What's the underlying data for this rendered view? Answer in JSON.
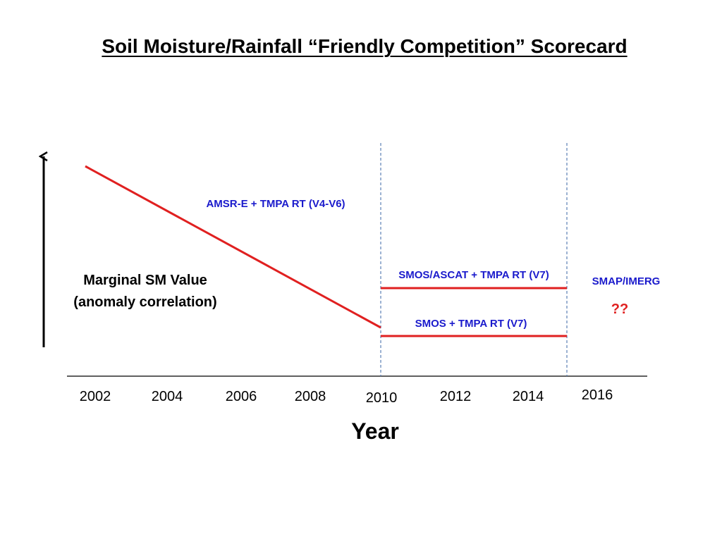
{
  "title": "Soil Moisture/Rainfall “Friendly Competition” Scorecard",
  "chart_data": {
    "type": "line",
    "xlabel": "Year",
    "ylabel_lines": [
      "Marginal SM Value",
      "(anomaly correlation)"
    ],
    "x_ticks": [
      "2002",
      "2004",
      "2006",
      "2008",
      "2010",
      "2012",
      "2014",
      "2016"
    ],
    "series": [
      {
        "name": "AMSR-E + TMPA RT (V4-V6)",
        "color": "#e02020",
        "points": [
          [
            2002,
            1.0
          ],
          [
            2010,
            0.11
          ]
        ]
      },
      {
        "name": "SMOS/ASCAT + TMPA RT (V7)",
        "color": "#e02020",
        "points": [
          [
            2010,
            0.33
          ],
          [
            2015.1,
            0.33
          ]
        ]
      },
      {
        "name": "SMOS + TMPA RT (V7)",
        "color": "#e02020",
        "points": [
          [
            2010,
            0.07
          ],
          [
            2015.1,
            0.07
          ]
        ]
      }
    ],
    "annotations": [
      {
        "text": "SMAP/IMERG",
        "color": "#1a1acc"
      },
      {
        "text": "??",
        "color": "#e02020"
      }
    ],
    "vlines": [
      2010,
      2015.1
    ],
    "series_label_color": "#1a1acc",
    "axis_color": "#000000",
    "vline_color": "#5a7fb5"
  }
}
